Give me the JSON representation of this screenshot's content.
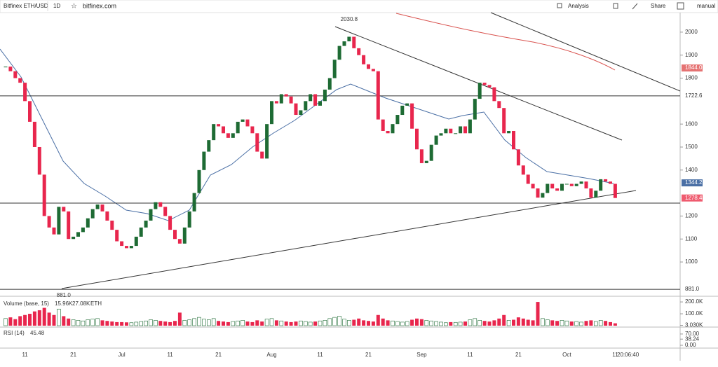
{
  "toolbar": {
    "symbol": "Bitfinex ETH/USD",
    "interval": "1D",
    "site": "bitfinex.com",
    "analysis": "Analysis",
    "share": "Share",
    "mode": "manual"
  },
  "chart_data": {
    "type": "candlestick",
    "categories": [
      null,
      null,
      null,
      null,
      "11",
      null,
      null,
      null,
      null,
      null,
      null,
      null,
      null,
      null,
      "21",
      null,
      null,
      null,
      null,
      null,
      null,
      null,
      null,
      null,
      "Jul",
      null,
      null,
      null,
      null,
      null,
      null,
      null,
      null,
      null,
      "11",
      null,
      null,
      null,
      null,
      null,
      null,
      null,
      null,
      null,
      "21",
      null,
      null,
      null,
      null,
      null,
      null,
      null,
      null,
      null,
      null,
      "Aug",
      null,
      null,
      null,
      null,
      null,
      null,
      null,
      null,
      null,
      "11",
      null,
      null,
      null,
      null,
      null,
      null,
      null,
      null,
      null,
      "21",
      null,
      null,
      null,
      null,
      null,
      null,
      null,
      null,
      null,
      null,
      "Sep",
      null,
      null,
      null,
      null,
      null,
      null,
      null,
      null,
      null,
      "11",
      null,
      null,
      null,
      null,
      null,
      null,
      null,
      null,
      null,
      "21",
      null,
      null,
      null,
      null,
      null,
      null,
      null,
      null,
      null,
      "Oct",
      null,
      null,
      null,
      null,
      null,
      null,
      null,
      null,
      null,
      "11"
    ],
    "close": [
      1850,
      1830,
      1800,
      1780,
      1700,
      1610,
      1500,
      1380,
      1200,
      1150,
      1120,
      1240,
      1220,
      1100,
      1110,
      1130,
      1150,
      1190,
      1230,
      1250,
      1220,
      1180,
      1140,
      1090,
      1070,
      1060,
      1070,
      1110,
      1150,
      1180,
      1230,
      1260,
      1240,
      1200,
      1140,
      1100,
      1080,
      1150,
      1220,
      1300,
      1400,
      1480,
      1530,
      1600,
      1590,
      1560,
      1540,
      1560,
      1610,
      1620,
      1590,
      1560,
      1480,
      1450,
      1600,
      1700,
      1690,
      1730,
      1720,
      1690,
      1640,
      1660,
      1700,
      1730,
      1680,
      1700,
      1750,
      1800,
      1880,
      1940,
      1960,
      1980,
      1930,
      1900,
      1860,
      1840,
      1830,
      1620,
      1570,
      1560,
      1600,
      1640,
      1680,
      1690,
      1580,
      1490,
      1430,
      1440,
      1510,
      1550,
      1560,
      1580,
      1560,
      1560,
      1590,
      1560,
      1620,
      1710,
      1780,
      1770,
      1760,
      1700,
      1670,
      1560,
      1570,
      1490,
      1420,
      1380,
      1340,
      1320,
      1280,
      1300,
      1340,
      1320,
      1310,
      1340,
      1340,
      1330,
      1340,
      1350,
      1320,
      1280,
      1310,
      1360,
      1350,
      1340,
      1278.4
    ],
    "up_color": "#1e6b34",
    "down_color": "#e8264d",
    "ylim": [
      860,
      2085
    ],
    "yticks": [
      1000,
      1100,
      1200,
      1400,
      1500,
      1600,
      1800,
      1900,
      2000
    ],
    "annotations": [
      {
        "value": 2030.8,
        "label": "2030.8",
        "index": 71
      },
      {
        "value": 881,
        "label": "881.0",
        "index": 12
      }
    ],
    "levels": [
      {
        "value": 1722.6,
        "label": "1722.6"
      },
      {
        "value": 881,
        "label": "881.0"
      }
    ],
    "support_level": 1256,
    "price_tags": [
      {
        "value": 1844,
        "label": "1844.0",
        "color": "#e57373"
      },
      {
        "value": 1344.2,
        "label": "1344.2",
        "color": "#4a6fa5"
      },
      {
        "value": 1278.4,
        "label": "1278.4",
        "color": "#ef5b6f"
      }
    ],
    "time": "20:06:40",
    "volume": {
      "title": "Volume (base, 15)",
      "last": "15.96K",
      "average": "27.08K",
      "unit": "ETH",
      "values": [
        60,
        70,
        55,
        80,
        90,
        100,
        120,
        130,
        150,
        110,
        90,
        140,
        80,
        60,
        50,
        45,
        40,
        50,
        55,
        60,
        45,
        40,
        35,
        30,
        30,
        28,
        25,
        30,
        35,
        40,
        50,
        45,
        40,
        35,
        30,
        40,
        110,
        45,
        50,
        60,
        70,
        55,
        50,
        60,
        40,
        35,
        30,
        35,
        40,
        45,
        35,
        30,
        45,
        35,
        55,
        60,
        45,
        40,
        35,
        30,
        35,
        40,
        35,
        30,
        35,
        40,
        45,
        60,
        70,
        80,
        55,
        45,
        50,
        60,
        45,
        40,
        35,
        90,
        60,
        45,
        40,
        35,
        30,
        35,
        50,
        60,
        55,
        45,
        40,
        35,
        30,
        25,
        30,
        28,
        30,
        35,
        50,
        60,
        45,
        40,
        35,
        45,
        60,
        90,
        45,
        50,
        70,
        60,
        50,
        45,
        200,
        60,
        50,
        45,
        40,
        45,
        40,
        35,
        35,
        30,
        40,
        45,
        35,
        45,
        40,
        30,
        20
      ],
      "ylim": [
        0,
        230
      ],
      "yticks": [
        {
          "value": 200,
          "label": "200.0K"
        },
        {
          "value": 100,
          "label": "100.0K"
        },
        {
          "value": 3.03,
          "label": "3.030K"
        }
      ]
    },
    "rsi": {
      "title": "RSI (14)",
      "last": "45.48",
      "ylim": [
        0,
        100
      ],
      "yticks": [
        {
          "value": 70,
          "label": "70.00"
        },
        {
          "value": 38.24,
          "label": "38.24"
        },
        {
          "value": 0,
          "label": "0.00"
        }
      ]
    }
  }
}
